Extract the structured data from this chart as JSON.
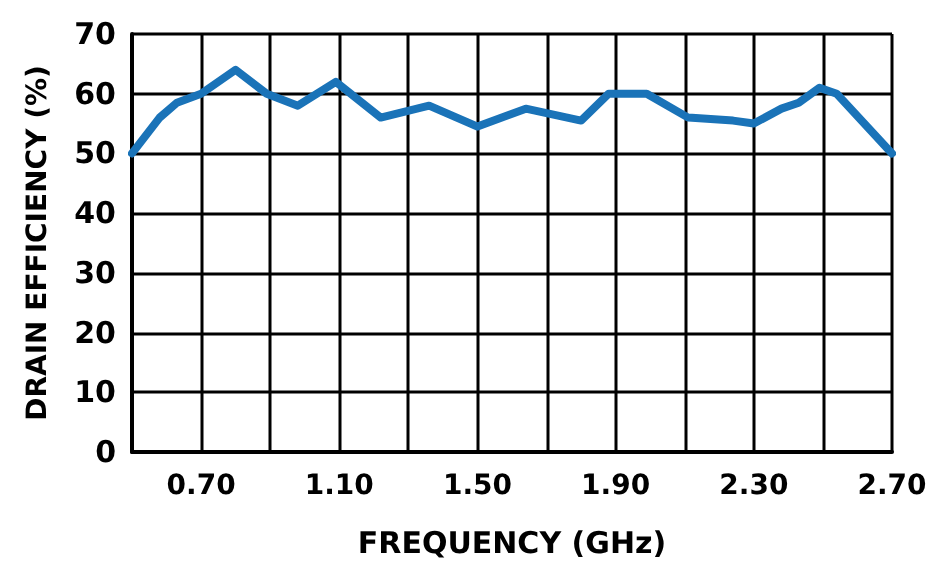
{
  "chart_data": {
    "type": "line",
    "xlabel": "FREQUENCY (GHz)",
    "ylabel": "DRAIN EFFICIENCY (%)",
    "x": [
      0.5,
      0.58,
      0.63,
      0.7,
      0.8,
      0.89,
      0.98,
      1.09,
      1.22,
      1.36,
      1.5,
      1.64,
      1.8,
      1.88,
      1.99,
      2.11,
      2.24,
      2.3,
      2.38,
      2.43,
      2.49,
      2.54,
      2.7
    ],
    "series": [
      {
        "color": "#1a73b8",
        "values": [
          50,
          56,
          58.5,
          60,
          64,
          60,
          58,
          62,
          56,
          58,
          54.5,
          57.5,
          55.5,
          60,
          60,
          56,
          55.5,
          55,
          57.5,
          58.5,
          61,
          60,
          50
        ]
      }
    ],
    "xlim": [
      0.5,
      2.7
    ],
    "xticks": [
      {
        "value": 0.5,
        "label": null
      },
      {
        "value": 0.7,
        "label": "0.70"
      },
      {
        "value": 0.9,
        "label": null
      },
      {
        "value": 1.1,
        "label": "1.10"
      },
      {
        "value": 1.3,
        "label": null
      },
      {
        "value": 1.5,
        "label": "1.50"
      },
      {
        "value": 1.7,
        "label": null
      },
      {
        "value": 1.9,
        "label": "1.90"
      },
      {
        "value": 2.1,
        "label": null
      },
      {
        "value": 2.3,
        "label": "2.30"
      },
      {
        "value": 2.5,
        "label": null
      },
      {
        "value": 2.7,
        "label": "2.70"
      }
    ],
    "ylim": [
      0,
      70
    ],
    "yticks": [
      0,
      10,
      20,
      30,
      40,
      50,
      60,
      70
    ],
    "grid": true,
    "marker": "none",
    "line_style": "solid"
  }
}
